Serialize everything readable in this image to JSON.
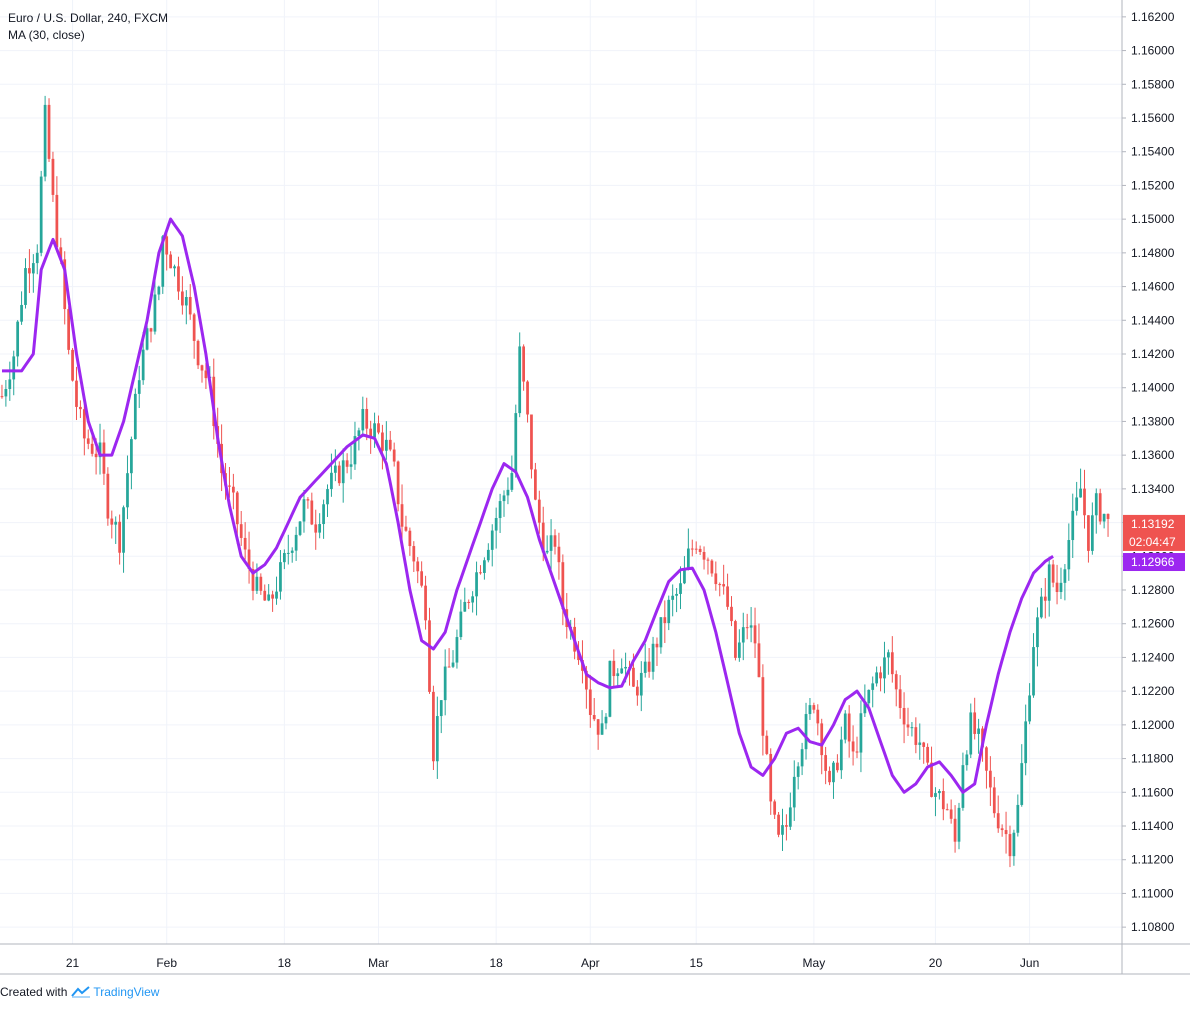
{
  "legend": {
    "title": "Euro / U.S. Dollar, 240, FXCM",
    "indicator": "MA (30, close)"
  },
  "footer": {
    "created_with": "Created with",
    "brand": "TradingView"
  },
  "colors": {
    "up": "#26a69a",
    "down": "#ef5350",
    "ma": "#9c27f0",
    "grid": "#f0f3fa",
    "axis_text": "#131722",
    "last_price_bg": "#ef5350",
    "ma_label_bg": "#9c27f0"
  },
  "chart_data": {
    "type": "candlestick",
    "y_axis": {
      "min": 1.107,
      "max": 1.163,
      "ticks": [
        "1.16200",
        "1.16000",
        "1.15800",
        "1.15600",
        "1.15400",
        "1.15200",
        "1.15000",
        "1.14800",
        "1.14600",
        "1.14400",
        "1.14200",
        "1.14000",
        "1.13800",
        "1.13600",
        "1.13400",
        "1.13200",
        "1.13000",
        "1.12800",
        "1.12600",
        "1.12400",
        "1.12200",
        "1.12000",
        "1.11800",
        "1.11600",
        "1.11400",
        "1.11200",
        "1.11000",
        "1.10800"
      ]
    },
    "x_axis": {
      "labels": [
        {
          "label": "21",
          "index": 18
        },
        {
          "label": "Feb",
          "index": 42
        },
        {
          "label": "18",
          "index": 72
        },
        {
          "label": "Mar",
          "index": 96
        },
        {
          "label": "18",
          "index": 126
        },
        {
          "label": "Apr",
          "index": 150
        },
        {
          "label": "15",
          "index": 177
        },
        {
          "label": "May",
          "index": 207
        },
        {
          "label": "20",
          "index": 238
        },
        {
          "label": "Jun",
          "index": 262
        }
      ],
      "total_bars": 283
    },
    "price_anchors": [
      [
        0,
        1.1395
      ],
      [
        3,
        1.142
      ],
      [
        6,
        1.147
      ],
      [
        9,
        1.1485
      ],
      [
        11,
        1.156
      ],
      [
        13,
        1.151
      ],
      [
        15,
        1.147
      ],
      [
        17,
        1.142
      ],
      [
        19,
        1.139
      ],
      [
        21,
        1.137
      ],
      [
        25,
        1.136
      ],
      [
        27,
        1.133
      ],
      [
        30,
        1.131
      ],
      [
        32,
        1.135
      ],
      [
        35,
        1.141
      ],
      [
        38,
        1.144
      ],
      [
        40,
        1.146
      ],
      [
        41,
        1.149
      ],
      [
        44,
        1.147
      ],
      [
        47,
        1.145
      ],
      [
        50,
        1.142
      ],
      [
        53,
        1.14
      ],
      [
        56,
        1.135
      ],
      [
        59,
        1.133
      ],
      [
        62,
        1.13
      ],
      [
        65,
        1.128
      ],
      [
        68,
        1.127
      ],
      [
        71,
        1.129
      ],
      [
        74,
        1.131
      ],
      [
        77,
        1.133
      ],
      [
        80,
        1.132
      ],
      [
        83,
        1.134
      ],
      [
        86,
        1.135
      ],
      [
        89,
        1.136
      ],
      [
        92,
        1.138
      ],
      [
        95,
        1.1375
      ],
      [
        98,
        1.1365
      ],
      [
        100,
        1.135
      ],
      [
        102,
        1.132
      ],
      [
        105,
        1.13
      ],
      [
        108,
        1.127
      ],
      [
        110,
        1.1185
      ],
      [
        112,
        1.122
      ],
      [
        115,
        1.124
      ],
      [
        118,
        1.127
      ],
      [
        121,
        1.129
      ],
      [
        124,
        1.131
      ],
      [
        127,
        1.133
      ],
      [
        130,
        1.135
      ],
      [
        132,
        1.142
      ],
      [
        134,
        1.138
      ],
      [
        136,
        1.133
      ],
      [
        139,
        1.13
      ],
      [
        141,
        1.131
      ],
      [
        143,
        1.127
      ],
      [
        146,
        1.125
      ],
      [
        148,
        1.124
      ],
      [
        150,
        1.121
      ],
      [
        153,
        1.1195
      ],
      [
        155,
        1.123
      ],
      [
        158,
        1.124
      ],
      [
        161,
        1.122
      ],
      [
        164,
        1.123
      ],
      [
        167,
        1.125
      ],
      [
        170,
        1.127
      ],
      [
        173,
        1.128
      ],
      [
        175,
        1.13
      ],
      [
        177,
        1.131
      ],
      [
        180,
        1.13
      ],
      [
        182,
        1.129
      ],
      [
        185,
        1.127
      ],
      [
        187,
        1.124
      ],
      [
        190,
        1.126
      ],
      [
        192,
        1.125
      ],
      [
        194,
        1.12
      ],
      [
        196,
        1.115
      ],
      [
        198,
        1.113
      ],
      [
        200,
        1.114
      ],
      [
        202,
        1.1175
      ],
      [
        205,
        1.12
      ],
      [
        207,
        1.1215
      ],
      [
        209,
        1.119
      ],
      [
        211,
        1.116
      ],
      [
        213,
        1.118
      ],
      [
        215,
        1.12
      ],
      [
        217,
        1.118
      ],
      [
        220,
        1.121
      ],
      [
        223,
        1.123
      ],
      [
        226,
        1.124
      ],
      [
        228,
        1.122
      ],
      [
        231,
        1.12
      ],
      [
        234,
        1.119
      ],
      [
        236,
        1.117
      ],
      [
        238,
        1.116
      ],
      [
        241,
        1.115
      ],
      [
        243,
        1.113
      ],
      [
        245,
        1.118
      ],
      [
        247,
        1.12
      ],
      [
        249,
        1.119
      ],
      [
        251,
        1.117
      ],
      [
        253,
        1.115
      ],
      [
        255,
        1.114
      ],
      [
        257,
        1.113
      ],
      [
        259,
        1.115
      ],
      [
        261,
        1.12
      ],
      [
        263,
        1.125
      ],
      [
        265,
        1.127
      ],
      [
        267,
        1.129
      ],
      [
        269,
        1.128
      ],
      [
        271,
        1.13
      ],
      [
        273,
        1.132
      ],
      [
        275,
        1.134
      ],
      [
        277,
        1.131
      ],
      [
        279,
        1.133
      ],
      [
        281,
        1.1325
      ],
      [
        282,
        1.1319
      ]
    ],
    "ma_anchors": [
      [
        0,
        1.141
      ],
      [
        5,
        1.141
      ],
      [
        8,
        1.142
      ],
      [
        10,
        1.147
      ],
      [
        13,
        1.1488
      ],
      [
        16,
        1.147
      ],
      [
        19,
        1.142
      ],
      [
        22,
        1.138
      ],
      [
        25,
        1.136
      ],
      [
        28,
        1.136
      ],
      [
        31,
        1.138
      ],
      [
        34,
        1.141
      ],
      [
        37,
        1.144
      ],
      [
        40,
        1.148
      ],
      [
        43,
        1.15
      ],
      [
        46,
        1.149
      ],
      [
        49,
        1.146
      ],
      [
        52,
        1.142
      ],
      [
        55,
        1.137
      ],
      [
        58,
        1.133
      ],
      [
        61,
        1.13
      ],
      [
        64,
        1.129
      ],
      [
        67,
        1.1295
      ],
      [
        70,
        1.1305
      ],
      [
        73,
        1.132
      ],
      [
        76,
        1.1335
      ],
      [
        80,
        1.1345
      ],
      [
        84,
        1.1355
      ],
      [
        88,
        1.1365
      ],
      [
        92,
        1.1372
      ],
      [
        95,
        1.137
      ],
      [
        98,
        1.1355
      ],
      [
        101,
        1.132
      ],
      [
        104,
        1.128
      ],
      [
        107,
        1.125
      ],
      [
        110,
        1.1245
      ],
      [
        113,
        1.1255
      ],
      [
        116,
        1.128
      ],
      [
        119,
        1.13
      ],
      [
        122,
        1.132
      ],
      [
        125,
        1.134
      ],
      [
        128,
        1.1355
      ],
      [
        131,
        1.135
      ],
      [
        134,
        1.1335
      ],
      [
        137,
        1.131
      ],
      [
        140,
        1.129
      ],
      [
        143,
        1.127
      ],
      [
        146,
        1.125
      ],
      [
        149,
        1.123
      ],
      [
        152,
        1.1225
      ],
      [
        155,
        1.1222
      ],
      [
        158,
        1.1223
      ],
      [
        161,
        1.1238
      ],
      [
        164,
        1.125
      ],
      [
        167,
        1.1268
      ],
      [
        170,
        1.1285
      ],
      [
        173,
        1.1292
      ],
      [
        176,
        1.1293
      ],
      [
        179,
        1.128
      ],
      [
        182,
        1.1255
      ],
      [
        185,
        1.1225
      ],
      [
        188,
        1.1195
      ],
      [
        191,
        1.1175
      ],
      [
        194,
        1.117
      ],
      [
        197,
        1.118
      ],
      [
        200,
        1.1195
      ],
      [
        203,
        1.1198
      ],
      [
        206,
        1.119
      ],
      [
        209,
        1.1188
      ],
      [
        212,
        1.12
      ],
      [
        215,
        1.1215
      ],
      [
        218,
        1.122
      ],
      [
        221,
        1.121
      ],
      [
        224,
        1.119
      ],
      [
        227,
        1.117
      ],
      [
        230,
        1.116
      ],
      [
        233,
        1.1165
      ],
      [
        236,
        1.1175
      ],
      [
        239,
        1.1178
      ],
      [
        242,
        1.117
      ],
      [
        245,
        1.116
      ],
      [
        248,
        1.1165
      ],
      [
        251,
        1.12
      ],
      [
        254,
        1.123
      ],
      [
        257,
        1.1255
      ],
      [
        260,
        1.1275
      ],
      [
        263,
        1.129
      ],
      [
        266,
        1.1297
      ],
      [
        268,
        1.13
      ]
    ],
    "last_price": {
      "value": "1.13192",
      "countdown": "02:04:47"
    },
    "ma_last": {
      "value": "1.12966"
    }
  }
}
